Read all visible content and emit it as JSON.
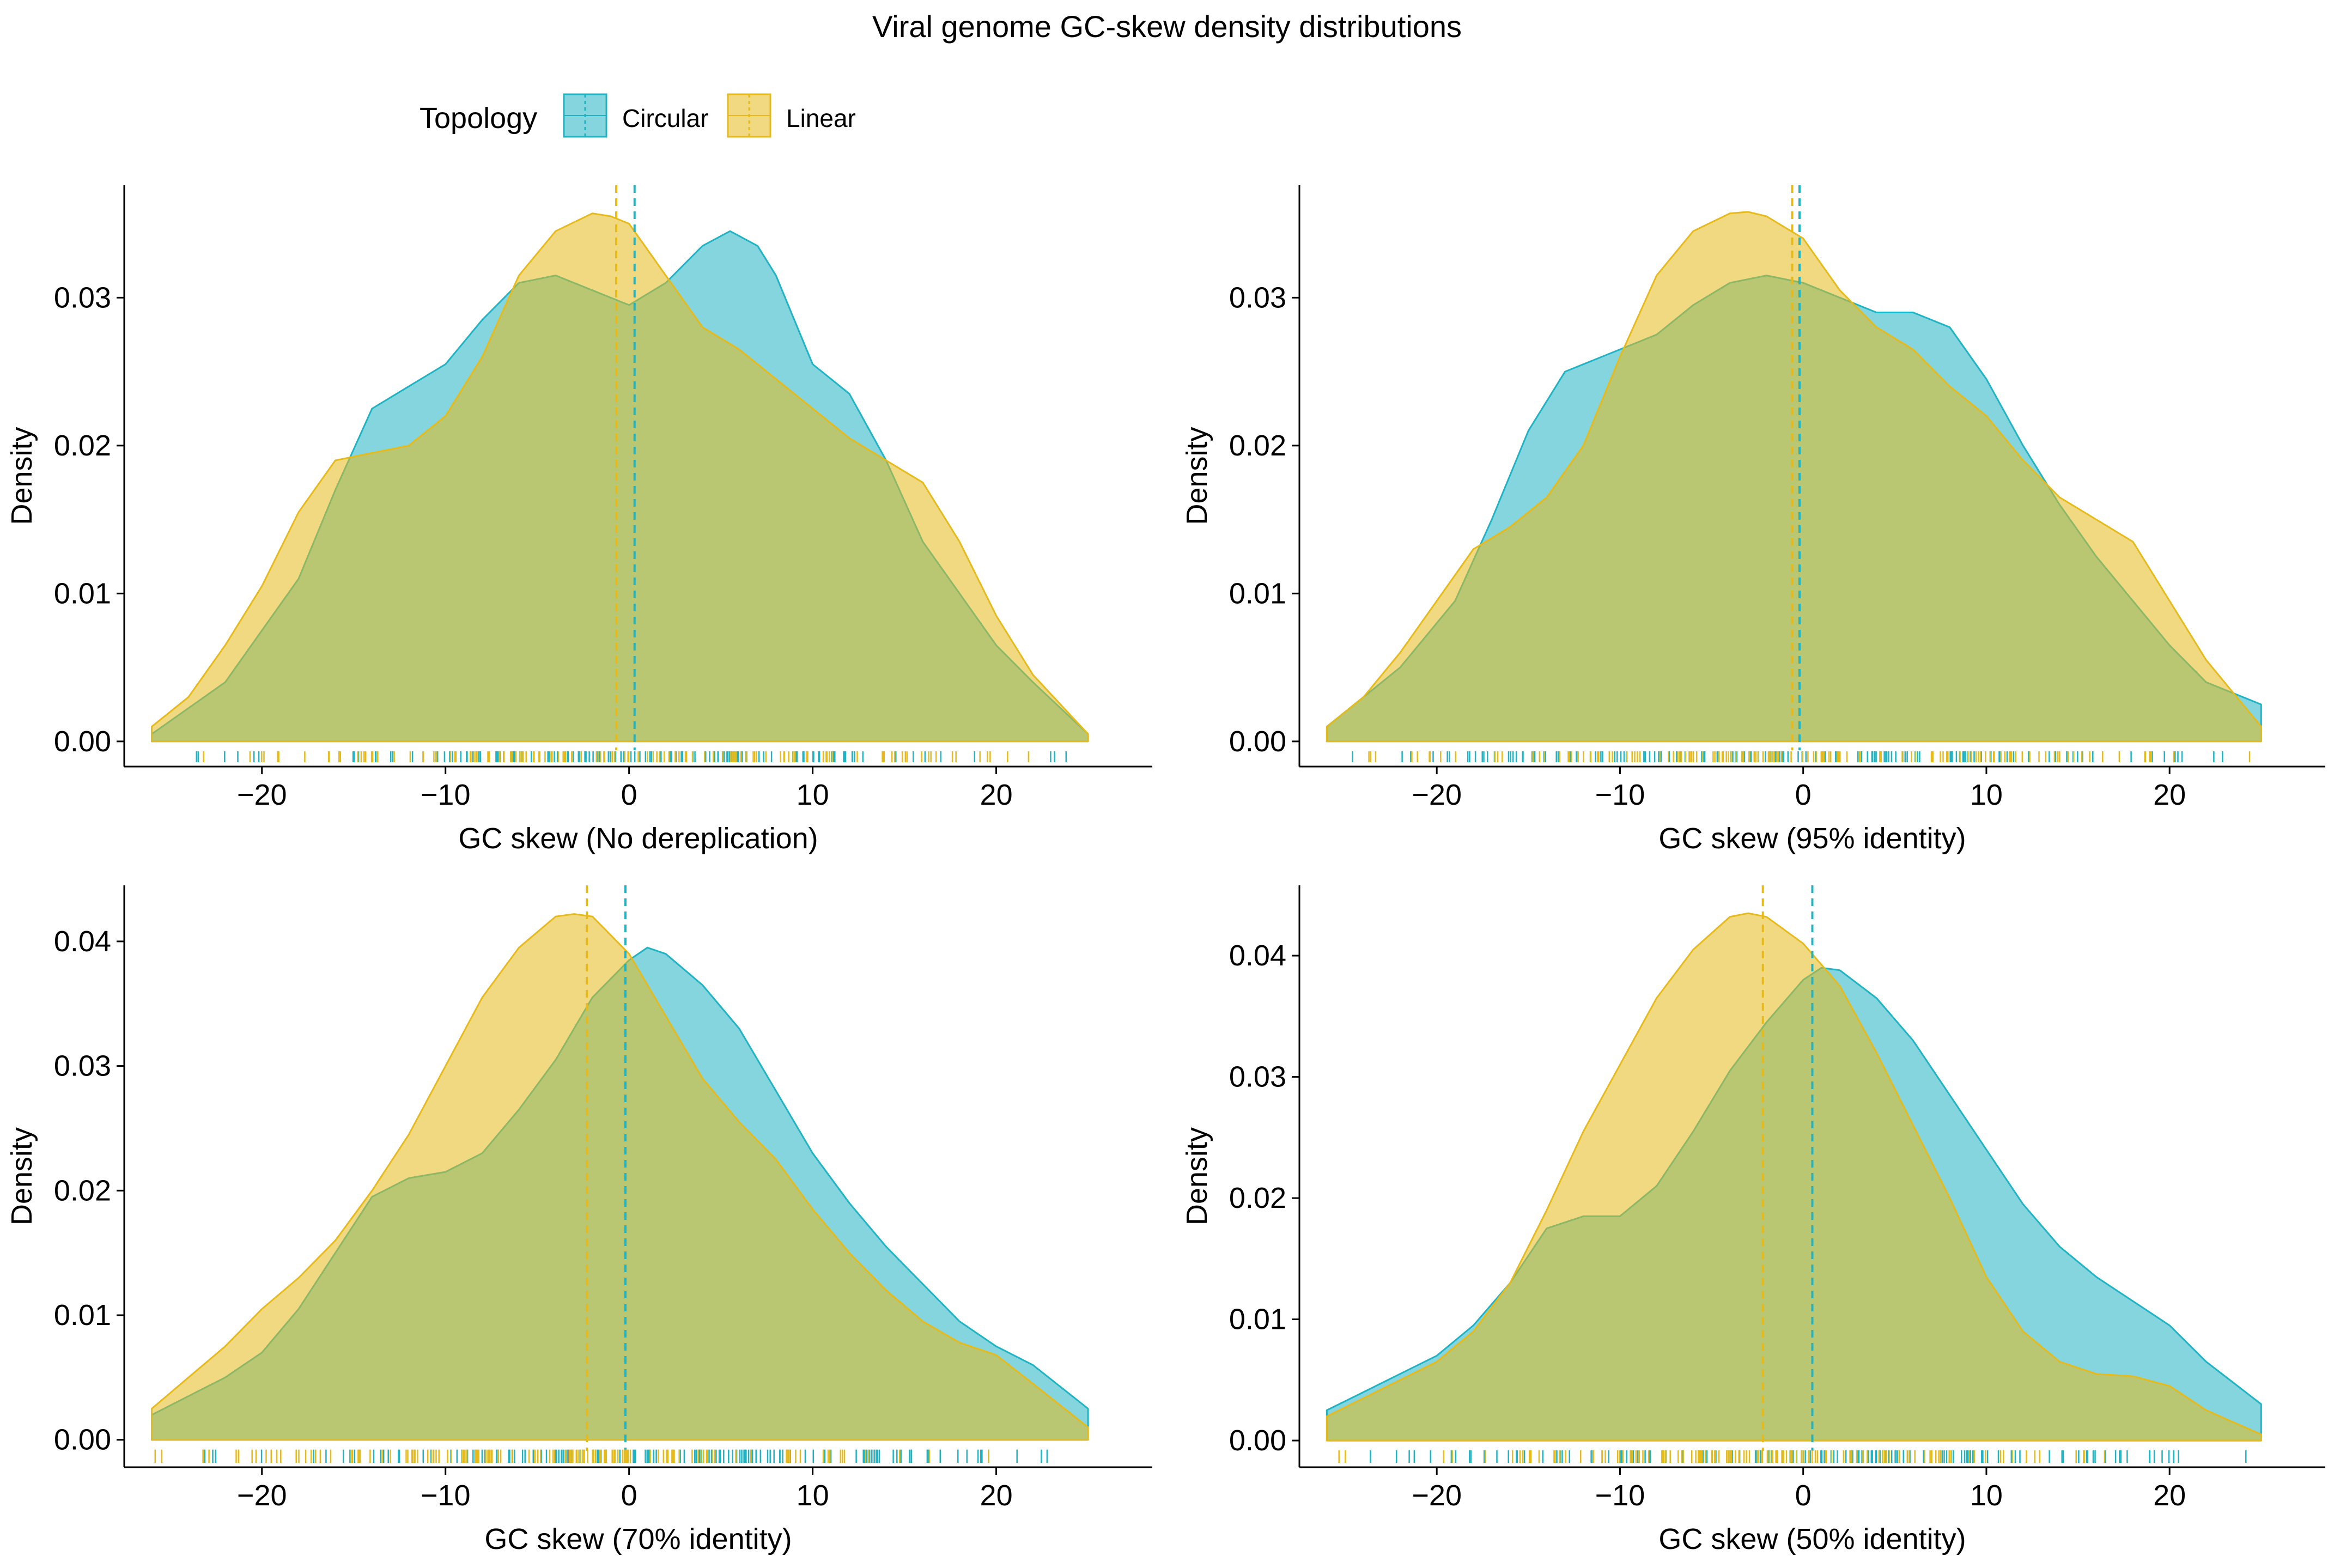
{
  "title": "Viral genome GC-skew density distributions",
  "legend": {
    "title": "Topology",
    "placement": "top",
    "items": [
      {
        "label": "Circular",
        "color": "#1FB3C3"
      },
      {
        "label": "Linear",
        "color": "#E6BA1A"
      }
    ]
  },
  "colors": {
    "circular": "#1FB3C3",
    "linear": "#E6BA1A",
    "axis": "#000000",
    "background": "#FFFFFF"
  },
  "chart_data": [
    {
      "type": "area",
      "xlabel": "GC skew (No dereplication)",
      "ylabel": "Density",
      "xlim": [
        -27.5,
        28.5
      ],
      "ylim": [
        -0.0017,
        0.0376
      ],
      "xticks": [
        -20,
        -10,
        0,
        10,
        20
      ],
      "xtick_labels": [
        "−20",
        "−10",
        "0",
        "10",
        "20"
      ],
      "yticks": [
        0,
        0.01,
        0.02,
        0.03
      ],
      "ytick_labels": [
        "0.00",
        "0.01",
        "0.02",
        "0.03"
      ],
      "grid": false,
      "rug": true,
      "series": [
        {
          "name": "Circular",
          "mean": 0.3,
          "x": [
            -26,
            -22,
            -18,
            -16,
            -14,
            -12,
            -10,
            -8,
            -6,
            -4,
            -2,
            0,
            2,
            4,
            5.5,
            7,
            8,
            10,
            12,
            14,
            16,
            18,
            20,
            22,
            25
          ],
          "y": [
            0.0005,
            0.004,
            0.011,
            0.017,
            0.0225,
            0.024,
            0.0255,
            0.0285,
            0.031,
            0.0315,
            0.0305,
            0.0295,
            0.031,
            0.0335,
            0.0345,
            0.0335,
            0.0315,
            0.0255,
            0.0235,
            0.019,
            0.0135,
            0.01,
            0.0065,
            0.004,
            0.0005
          ]
        },
        {
          "name": "Linear",
          "mean": -0.7,
          "x": [
            -26,
            -24,
            -22,
            -20,
            -18,
            -16,
            -14,
            -12,
            -10,
            -8,
            -6,
            -4,
            -2,
            -1,
            0,
            2,
            4,
            6,
            8,
            10,
            12,
            14,
            16,
            18,
            20,
            22,
            25
          ],
          "y": [
            0.001,
            0.003,
            0.0065,
            0.0105,
            0.0155,
            0.019,
            0.0195,
            0.02,
            0.022,
            0.026,
            0.0315,
            0.0345,
            0.0357,
            0.0355,
            0.035,
            0.0315,
            0.028,
            0.0265,
            0.0245,
            0.0225,
            0.0205,
            0.019,
            0.0175,
            0.0135,
            0.0085,
            0.0045,
            0.0005
          ]
        }
      ]
    },
    {
      "type": "area",
      "xlabel": "GC skew (95% identity)",
      "ylabel": "Density",
      "xlim": [
        -27.5,
        28.5
      ],
      "ylim": [
        -0.0017,
        0.0376
      ],
      "xticks": [
        -20,
        -10,
        0,
        10,
        20
      ],
      "xtick_labels": [
        "−20",
        "−10",
        "0",
        "10",
        "20"
      ],
      "yticks": [
        0,
        0.01,
        0.02,
        0.03
      ],
      "ytick_labels": [
        "0.00",
        "0.01",
        "0.02",
        "0.03"
      ],
      "grid": false,
      "rug": true,
      "series": [
        {
          "name": "Circular",
          "mean": -0.2,
          "x": [
            -26,
            -22,
            -19,
            -17,
            -15,
            -13,
            -10,
            -8,
            -6,
            -4,
            -2,
            0,
            2,
            4,
            6,
            8,
            10,
            12,
            14,
            16,
            18,
            20,
            22,
            25
          ],
          "y": [
            0.001,
            0.005,
            0.0095,
            0.015,
            0.021,
            0.025,
            0.0265,
            0.0275,
            0.0295,
            0.031,
            0.0315,
            0.031,
            0.03,
            0.029,
            0.029,
            0.028,
            0.0245,
            0.02,
            0.016,
            0.0125,
            0.0095,
            0.0065,
            0.004,
            0.0025
          ]
        },
        {
          "name": "Linear",
          "mean": -0.6,
          "x": [
            -26,
            -24,
            -22,
            -20,
            -18,
            -16,
            -14,
            -12,
            -10,
            -8,
            -6,
            -4,
            -3,
            -2,
            0,
            2,
            4,
            6,
            8,
            10,
            12,
            14,
            16,
            18,
            20,
            22,
            25
          ],
          "y": [
            0.001,
            0.003,
            0.006,
            0.0095,
            0.013,
            0.0145,
            0.0165,
            0.02,
            0.026,
            0.0315,
            0.0345,
            0.0357,
            0.0358,
            0.0355,
            0.034,
            0.0305,
            0.028,
            0.0265,
            0.024,
            0.022,
            0.019,
            0.0165,
            0.015,
            0.0135,
            0.0095,
            0.0055,
            0.001
          ]
        }
      ]
    },
    {
      "type": "area",
      "xlabel": "GC skew (70% identity)",
      "ylabel": "Density",
      "xlim": [
        -27.5,
        28.5
      ],
      "ylim": [
        -0.0022,
        0.0445
      ],
      "xticks": [
        -20,
        -10,
        0,
        10,
        20
      ],
      "xtick_labels": [
        "−20",
        "−10",
        "0",
        "10",
        "20"
      ],
      "yticks": [
        0,
        0.01,
        0.02,
        0.03,
        0.04
      ],
      "ytick_labels": [
        "0.00",
        "0.01",
        "0.02",
        "0.03",
        "0.04"
      ],
      "grid": false,
      "rug": true,
      "series": [
        {
          "name": "Circular",
          "mean": -0.2,
          "x": [
            -26,
            -24,
            -22,
            -20,
            -18,
            -16,
            -14,
            -12,
            -10,
            -8,
            -6,
            -4,
            -2,
            0,
            1,
            2,
            4,
            6,
            8,
            10,
            12,
            14,
            16,
            18,
            20,
            22,
            25
          ],
          "y": [
            0.002,
            0.0035,
            0.005,
            0.007,
            0.0105,
            0.015,
            0.0195,
            0.021,
            0.0215,
            0.023,
            0.0265,
            0.0305,
            0.0355,
            0.0385,
            0.0395,
            0.039,
            0.0365,
            0.033,
            0.028,
            0.023,
            0.019,
            0.0155,
            0.0125,
            0.0095,
            0.0075,
            0.006,
            0.0025
          ]
        },
        {
          "name": "Linear",
          "mean": -2.3,
          "x": [
            -26,
            -24,
            -22,
            -20,
            -18,
            -16,
            -14,
            -12,
            -10,
            -8,
            -6,
            -4,
            -3,
            -2,
            0,
            2,
            4,
            6,
            8,
            10,
            12,
            14,
            16,
            18,
            20,
            22,
            25
          ],
          "y": [
            0.0025,
            0.005,
            0.0075,
            0.0105,
            0.013,
            0.016,
            0.02,
            0.0245,
            0.03,
            0.0355,
            0.0395,
            0.042,
            0.0422,
            0.042,
            0.039,
            0.034,
            0.029,
            0.0255,
            0.0225,
            0.0185,
            0.015,
            0.012,
            0.0095,
            0.0078,
            0.0068,
            0.0045,
            0.001
          ]
        }
      ]
    },
    {
      "type": "area",
      "xlabel": "GC skew (50% identity)",
      "ylabel": "Density",
      "xlim": [
        -27.5,
        28.5
      ],
      "ylim": [
        -0.0022,
        0.0458
      ],
      "xticks": [
        -20,
        -10,
        0,
        10,
        20
      ],
      "xtick_labels": [
        "−20",
        "−10",
        "0",
        "10",
        "20"
      ],
      "yticks": [
        0,
        0.01,
        0.02,
        0.03,
        0.04
      ],
      "ytick_labels": [
        "0.00",
        "0.01",
        "0.02",
        "0.03",
        "0.04"
      ],
      "grid": false,
      "rug": true,
      "series": [
        {
          "name": "Circular",
          "mean": 0.5,
          "x": [
            -26,
            -24,
            -22,
            -20,
            -18,
            -16,
            -14,
            -12,
            -10,
            -8,
            -6,
            -4,
            -2,
            0,
            1,
            2,
            4,
            6,
            8,
            10,
            12,
            14,
            16,
            18,
            20,
            22,
            25
          ],
          "y": [
            0.0025,
            0.004,
            0.0055,
            0.007,
            0.0095,
            0.013,
            0.0175,
            0.0185,
            0.0185,
            0.021,
            0.0255,
            0.0305,
            0.0345,
            0.038,
            0.039,
            0.0388,
            0.0365,
            0.033,
            0.0285,
            0.024,
            0.0195,
            0.016,
            0.0135,
            0.0115,
            0.0095,
            0.0065,
            0.003
          ]
        },
        {
          "name": "Linear",
          "mean": -2.2,
          "x": [
            -26,
            -24,
            -22,
            -20,
            -18,
            -16,
            -14,
            -12,
            -10,
            -8,
            -6,
            -4,
            -3,
            -2,
            0,
            2,
            4,
            6,
            8,
            10,
            12,
            14,
            16,
            18,
            20,
            22,
            25
          ],
          "y": [
            0.002,
            0.0035,
            0.005,
            0.0065,
            0.009,
            0.013,
            0.019,
            0.0255,
            0.031,
            0.0365,
            0.0405,
            0.0432,
            0.0435,
            0.0432,
            0.041,
            0.0375,
            0.032,
            0.026,
            0.02,
            0.0135,
            0.009,
            0.0065,
            0.0055,
            0.0053,
            0.0045,
            0.0025,
            0.0005
          ]
        }
      ]
    }
  ]
}
